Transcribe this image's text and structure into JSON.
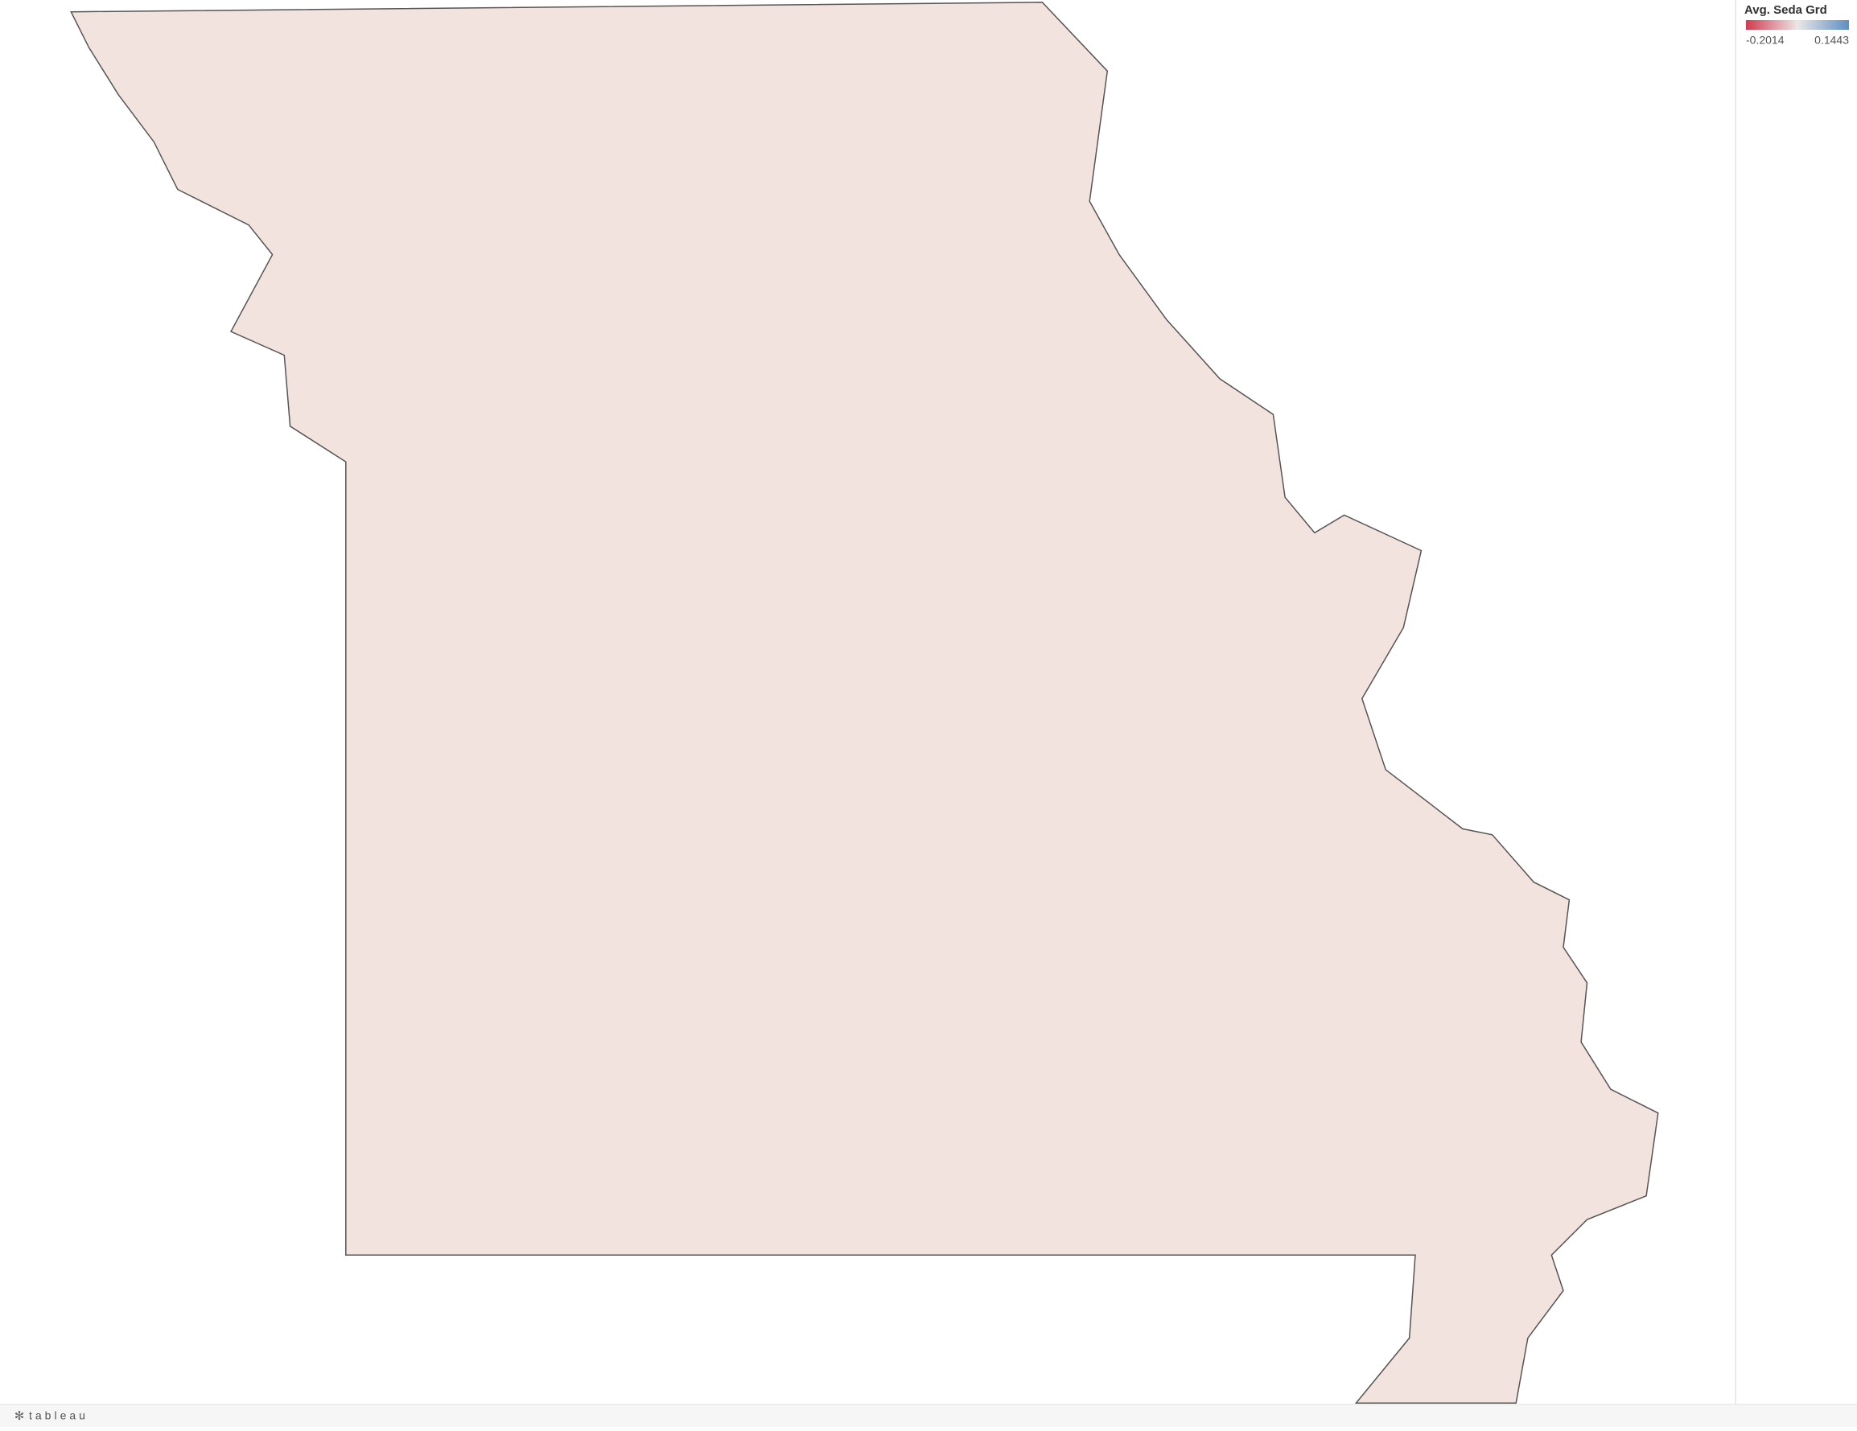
{
  "legend": {
    "title": "Avg. Seda Grd",
    "min": -0.2014,
    "max": 0.1443,
    "colors": [
      "#d23a50",
      "#ebe6e6",
      "#5d8fc2"
    ]
  },
  "footer": {
    "brand": "tableau"
  }
}
